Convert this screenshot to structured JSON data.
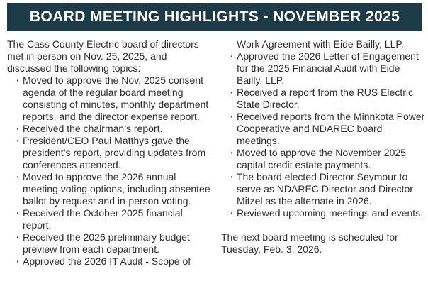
{
  "header": {
    "title": "BOARD MEETING HIGHLIGHTS - NOVEMBER 2025",
    "background_color": "#1d3a47",
    "text_color": "#ffffff"
  },
  "article": {
    "text_color": "#2f2f2f",
    "intro": "The Cass County Electric board of directors met in person on Nov. 25, 2025, and discussed the following topics:",
    "left_column": {
      "bullets": [
        "Moved to approve the Nov. 2025 consent agenda of the regular board meeting consisting of minutes, monthly department reports, and the director expense report.",
        "Received the chairman’s report.",
        "President/CEO Paul Matthys gave the president’s report, providing updates from conferences attended.",
        "Moved to approve the 2026 annual meeting voting options, including absentee ballot by request and in-person voting.",
        "Received the October 2025 financial report.",
        "Received the 2026 preliminary budget preview from each department.",
        "Approved the 2026 IT Audit - Scope of"
      ]
    },
    "right_column": {
      "continuation": "Work Agreement with Eide Bailly, LLP.",
      "bullets": [
        "Approved the 2026 Letter of Engagement for the 2025 Financial Audit with Eide Bailly, LLP.",
        "Received a report from the RUS Electric State Director.",
        "Received reports from the Minnkota Power Cooperative and NDAREC board meetings.",
        "Moved to approve the November 2025 capital credit estate payments.",
        "The board elected Director Seymour to serve as NDAREC Director and Director Mitzel as the alternate in 2026.",
        "Reviewed upcoming meetings and events."
      ],
      "closing": "The next board meeting is scheduled for Tuesday, Feb. 3, 2026."
    }
  }
}
